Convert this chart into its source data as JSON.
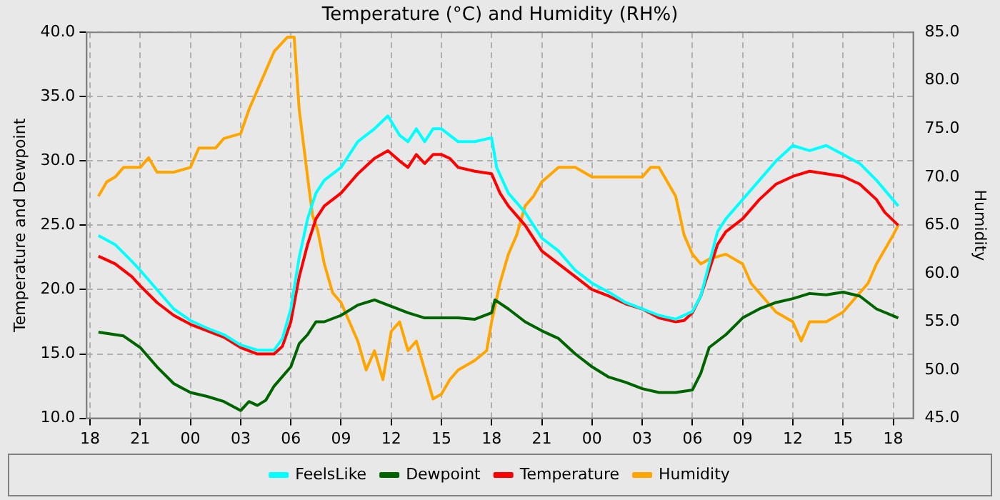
{
  "chart_data": {
    "type": "line",
    "title": "Temperature (°C) and Humidity (RH%)",
    "ylabel": "Temperature and Dewpoint",
    "y2label": "Humidity",
    "xlim": [
      17.8,
      67.2
    ],
    "xticks": [
      {
        "value": 18,
        "label": "18"
      },
      {
        "value": 21,
        "label": "21"
      },
      {
        "value": 24,
        "label": "00"
      },
      {
        "value": 27,
        "label": "03"
      },
      {
        "value": 30,
        "label": "06"
      },
      {
        "value": 33,
        "label": "09"
      },
      {
        "value": 36,
        "label": "12"
      },
      {
        "value": 39,
        "label": "15"
      },
      {
        "value": 42,
        "label": "18"
      },
      {
        "value": 45,
        "label": "21"
      },
      {
        "value": 48,
        "label": "00"
      },
      {
        "value": 51,
        "label": "03"
      },
      {
        "value": 54,
        "label": "06"
      },
      {
        "value": 57,
        "label": "09"
      },
      {
        "value": 60,
        "label": "12"
      },
      {
        "value": 63,
        "label": "15"
      },
      {
        "value": 66,
        "label": "18"
      }
    ],
    "ylim": [
      10,
      40
    ],
    "yticks": [
      {
        "value": 10,
        "label": "10.0"
      },
      {
        "value": 15,
        "label": "15.0"
      },
      {
        "value": 20,
        "label": "20.0"
      },
      {
        "value": 25,
        "label": "25.0"
      },
      {
        "value": 30,
        "label": "30.0"
      },
      {
        "value": 35,
        "label": "35.0"
      },
      {
        "value": 40,
        "label": "40.0"
      }
    ],
    "y2lim": [
      45,
      85
    ],
    "y2ticks": [
      {
        "value": 45,
        "label": "45.0"
      },
      {
        "value": 50,
        "label": "50.0"
      },
      {
        "value": 55,
        "label": "55.0"
      },
      {
        "value": 60,
        "label": "60.0"
      },
      {
        "value": 65,
        "label": "65.0"
      },
      {
        "value": 70,
        "label": "70.0"
      },
      {
        "value": 75,
        "label": "75.0"
      },
      {
        "value": 80,
        "label": "80.0"
      },
      {
        "value": 85,
        "label": "85.0"
      }
    ],
    "grid": true,
    "legend": "bottom",
    "marker": "none",
    "line_style": "solid",
    "series": [
      {
        "name": "FeelsLike",
        "color": "#00ffff",
        "x": [
          18.5,
          19.5,
          20.5,
          21,
          22,
          23,
          24,
          25,
          26,
          27,
          28,
          29,
          29.5,
          30,
          30.5,
          31,
          31.5,
          32,
          33,
          34,
          35,
          35.8,
          36.5,
          37,
          37.5,
          38,
          38.5,
          39,
          40,
          41,
          42,
          42.3,
          43,
          44,
          45,
          46,
          47,
          48,
          49,
          50,
          51,
          52,
          53,
          54,
          54.5,
          55,
          55.5,
          56,
          57,
          58,
          59,
          60,
          61,
          62,
          63,
          64,
          65,
          66.3
        ],
        "values": [
          24.2,
          23.5,
          22.2,
          21.5,
          20.0,
          18.5,
          17.6,
          17.0,
          16.5,
          15.7,
          15.3,
          15.3,
          16.2,
          18.5,
          22.5,
          25.5,
          27.5,
          28.5,
          29.5,
          31.5,
          32.5,
          33.5,
          32,
          31.5,
          32.5,
          31.5,
          32.5,
          32.5,
          31.5,
          31.5,
          31.8,
          29.5,
          27.5,
          26,
          24,
          23,
          21.5,
          20.5,
          19.8,
          19.0,
          18.5,
          18.0,
          17.7,
          18.3,
          19.5,
          22,
          24.5,
          25.5,
          27,
          28.5,
          30,
          31.2,
          30.8,
          31.2,
          30.5,
          29.8,
          28.5,
          26.5
        ]
      },
      {
        "name": "Dewpoint",
        "color": "#006400",
        "x": [
          18.5,
          20,
          21,
          22,
          23,
          24,
          25,
          26,
          27,
          27.5,
          28,
          28.5,
          29,
          30,
          30.5,
          31,
          31.5,
          32,
          33,
          34,
          35,
          36,
          37,
          38,
          39,
          40,
          41,
          42,
          42.2,
          43,
          44,
          45,
          46,
          47,
          48,
          49,
          50,
          51,
          52,
          53,
          54,
          54.5,
          55,
          56,
          57,
          58,
          59,
          60,
          61,
          62,
          63,
          64,
          65,
          66.3
        ],
        "values": [
          16.7,
          16.4,
          15.5,
          14.0,
          12.7,
          12.0,
          11.7,
          11.3,
          10.6,
          11.3,
          11.0,
          11.4,
          12.5,
          14.0,
          15.8,
          16.5,
          17.5,
          17.5,
          18.0,
          18.8,
          19.2,
          18.7,
          18.2,
          17.8,
          17.8,
          17.8,
          17.7,
          18.2,
          19.2,
          18.5,
          17.5,
          16.8,
          16.2,
          15.0,
          14.0,
          13.2,
          12.8,
          12.3,
          12.0,
          12.0,
          12.2,
          13.5,
          15.5,
          16.5,
          17.8,
          18.5,
          19.0,
          19.3,
          19.7,
          19.6,
          19.8,
          19.5,
          18.5,
          17.8
        ]
      },
      {
        "name": "Temperature",
        "color": "#ff0000",
        "x": [
          18.5,
          19.5,
          20.5,
          21,
          22,
          23,
          24,
          25,
          26,
          27,
          28,
          29,
          29.5,
          30,
          30.5,
          31,
          31.5,
          32,
          33,
          34,
          35,
          35.8,
          36.5,
          37,
          37.5,
          38,
          38.5,
          39,
          39.5,
          40,
          41,
          42,
          42.5,
          43,
          44,
          45,
          46,
          47,
          48,
          49,
          50,
          51,
          52,
          53,
          53.5,
          54,
          54.5,
          55,
          55.5,
          56,
          57,
          58,
          59,
          60,
          61,
          62,
          63,
          64,
          65,
          65.5,
          66.3
        ],
        "values": [
          22.6,
          22.0,
          21.0,
          20.3,
          19.0,
          18.0,
          17.3,
          16.8,
          16.3,
          15.5,
          15.0,
          15.0,
          15.6,
          17.5,
          21,
          23.5,
          25.5,
          26.5,
          27.5,
          29,
          30.2,
          30.8,
          30,
          29.5,
          30.5,
          29.8,
          30.5,
          30.5,
          30.2,
          29.5,
          29.2,
          29.0,
          27.5,
          26.5,
          25.0,
          23.0,
          22.0,
          21.0,
          20.0,
          19.5,
          18.9,
          18.5,
          17.8,
          17.5,
          17.6,
          18.2,
          19.5,
          21.5,
          23.5,
          24.5,
          25.5,
          27,
          28.2,
          28.8,
          29.2,
          29.0,
          28.8,
          28.2,
          27.0,
          26.0,
          25.0
        ]
      },
      {
        "name": "Humidity",
        "color": "#ffa500",
        "axis": "y2",
        "x": [
          18.5,
          19,
          19.5,
          20,
          21,
          21.5,
          22,
          23,
          24,
          24.5,
          25.5,
          26,
          27,
          27.5,
          28,
          28.5,
          29,
          29.8,
          30.2,
          30.5,
          31,
          31.3,
          31.6,
          32,
          32.5,
          33,
          33.5,
          34,
          34.5,
          35,
          35.5,
          36,
          36.5,
          37,
          37.5,
          38,
          38.5,
          39,
          39.5,
          40,
          41,
          41.7,
          42,
          42.5,
          43,
          43.5,
          44,
          44.5,
          45,
          46,
          47,
          48,
          48.5,
          49,
          50,
          51,
          51.5,
          52,
          52.5,
          53,
          53.5,
          54,
          54.5,
          55,
          56,
          57,
          57.5,
          58,
          58.5,
          59,
          60,
          60.5,
          61,
          62,
          63,
          64,
          64.5,
          65,
          66,
          66.3
        ],
        "values": [
          68.0,
          69.5,
          70.0,
          71.0,
          71.0,
          72.0,
          70.5,
          70.5,
          71.0,
          73.0,
          73.0,
          74.0,
          74.5,
          77,
          79,
          81,
          83,
          84.5,
          84.5,
          77,
          70,
          66,
          64.5,
          61,
          58,
          57,
          55,
          53,
          50,
          52,
          49,
          54,
          55,
          52,
          53,
          50,
          47,
          47.5,
          49,
          50,
          51,
          52,
          55,
          59,
          62,
          64,
          67,
          68,
          69.5,
          71,
          71,
          70,
          70,
          70,
          70,
          70,
          71,
          71,
          69.5,
          68,
          64,
          62,
          61,
          61.5,
          62,
          61,
          59,
          58,
          57,
          56,
          55,
          53,
          55,
          55,
          56,
          58,
          59,
          61,
          64,
          65
        ]
      }
    ]
  }
}
